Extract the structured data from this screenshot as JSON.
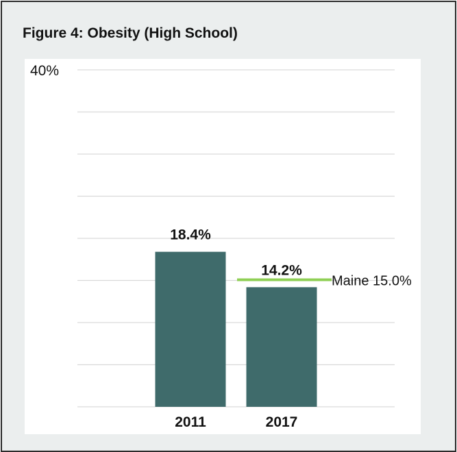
{
  "figure_title": "Figure 4: Obesity (High School)",
  "colors": {
    "bar": "#3f6b6b",
    "reference_line": "#8fcf55",
    "grid": "#d9d9d9",
    "panel_bg": "#ebeeee"
  },
  "chart_data": {
    "type": "bar",
    "title": "Figure 4: Obesity (High School)",
    "categories": [
      "2011",
      "2017"
    ],
    "values": [
      18.4,
      14.2
    ],
    "value_labels": [
      "18.4%",
      "14.2%"
    ],
    "ylim": [
      0,
      40
    ],
    "y_tick_labels": [
      "40%"
    ],
    "grid": true,
    "reference_line": {
      "value": 15.0,
      "label": "Maine 15.0%"
    }
  }
}
